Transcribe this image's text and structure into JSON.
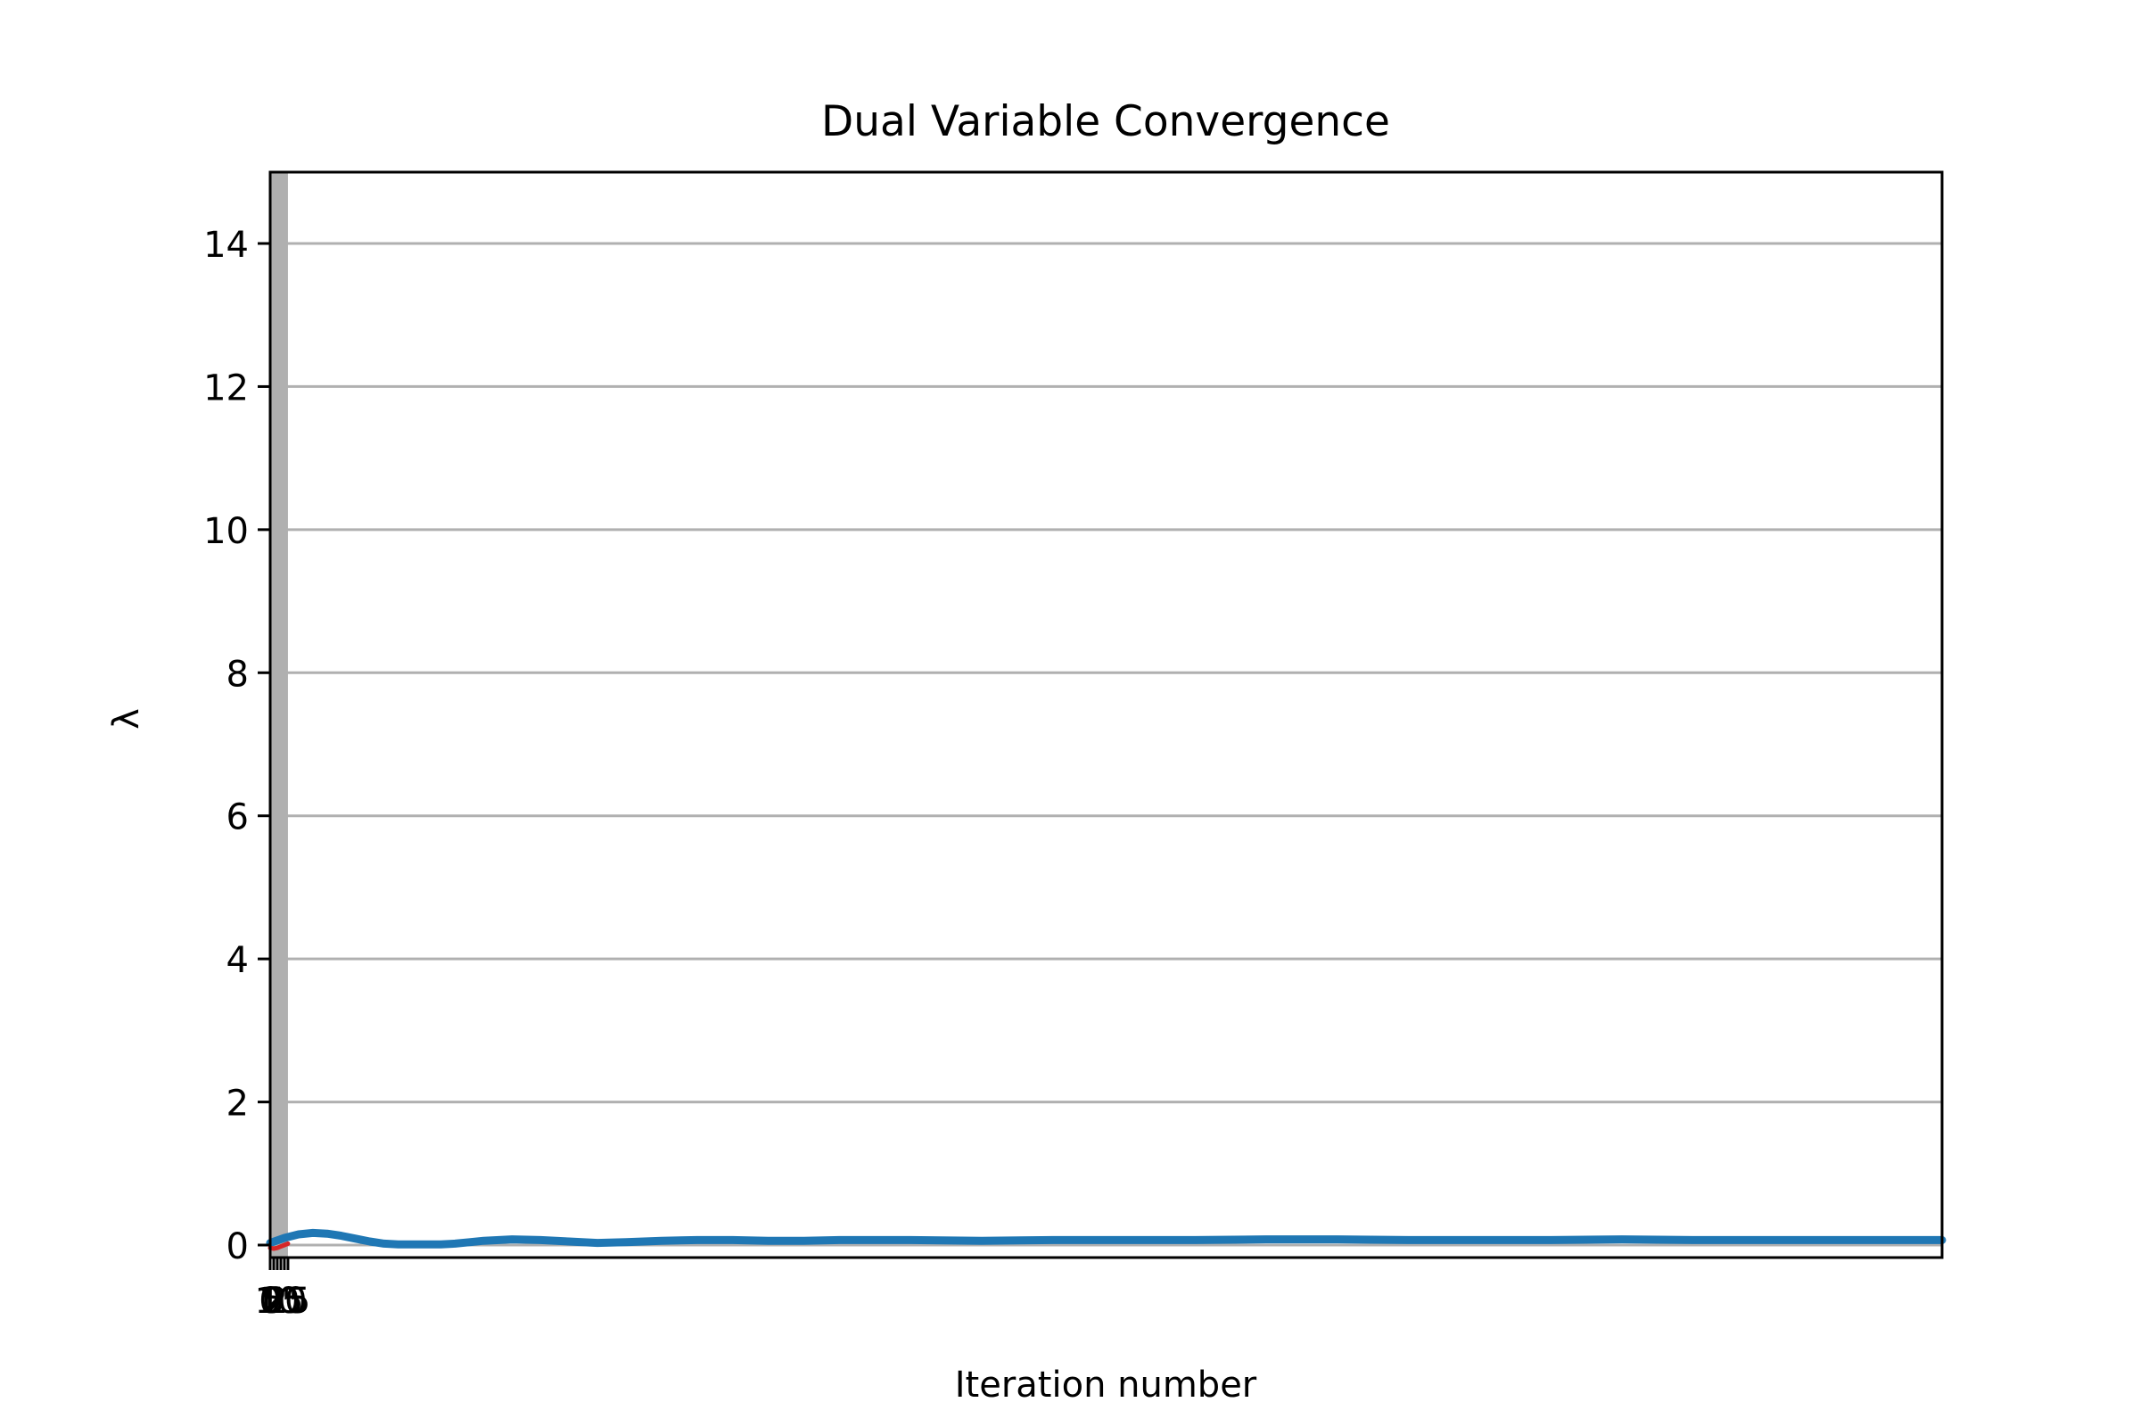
{
  "chart_data": {
    "type": "line",
    "title": "Dual Variable Convergence",
    "xlabel": "Iteration number",
    "ylabel": "λ",
    "xlim": [
      0,
      2350
    ],
    "ylim": [
      -0.2,
      15
    ],
    "yticks": [
      0,
      2,
      4,
      6,
      8,
      10,
      12,
      14
    ],
    "xticks": [
      0,
      5,
      10,
      15,
      20,
      25
    ],
    "xtick_labels": [
      "0",
      "5",
      "10",
      "15",
      "20",
      "25"
    ],
    "grid": {
      "axis": "y",
      "color": "#b0b0b0"
    },
    "shaded_region": {
      "x_start": 0,
      "x_end": 25,
      "color": "#b0b0b0"
    },
    "series": [
      {
        "color": "#1f77b4",
        "x": [
          0,
          20,
          40,
          60,
          80,
          100,
          120,
          140,
          160,
          180,
          200,
          220,
          240,
          260,
          280,
          300,
          340,
          380,
          420,
          460,
          500,
          550,
          600,
          650,
          700,
          750,
          800,
          900,
          1000,
          1100,
          1200,
          1300,
          1400,
          1500,
          1600,
          1700,
          1800,
          1900,
          2000,
          2100,
          2200,
          2350
        ],
        "y": [
          0.03,
          0.1,
          0.15,
          0.17,
          0.16,
          0.13,
          0.09,
          0.05,
          0.02,
          0.01,
          0.01,
          0.01,
          0.01,
          0.02,
          0.04,
          0.06,
          0.08,
          0.07,
          0.05,
          0.03,
          0.04,
          0.06,
          0.07,
          0.07,
          0.06,
          0.06,
          0.07,
          0.07,
          0.06,
          0.07,
          0.07,
          0.07,
          0.08,
          0.08,
          0.07,
          0.07,
          0.07,
          0.08,
          0.07,
          0.07,
          0.07,
          0.07
        ]
      },
      {
        "color": "#d62728",
        "x": [
          0,
          5,
          10,
          15,
          20,
          25
        ],
        "y": [
          -0.04,
          -0.05,
          -0.04,
          -0.02,
          0.0,
          0.02
        ]
      }
    ]
  }
}
